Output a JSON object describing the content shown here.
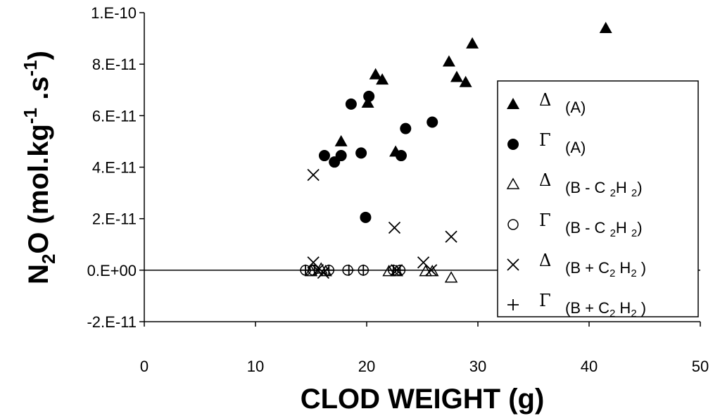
{
  "chart_data": {
    "type": "scatter",
    "title": "",
    "xlabel": "CLOD WEIGHT (g)",
    "ylabel": {
      "main": "N",
      "sub": "2",
      "rest": "O (mol.kg",
      "sup1": "-1",
      "mid": " .s",
      "sup2": "-1",
      "close": ")"
    },
    "xlim": [
      0,
      50
    ],
    "ylim": [
      -2e-11,
      1e-10
    ],
    "x_ticks": [
      0,
      10,
      20,
      30,
      40,
      50
    ],
    "x_tick_labels": [
      "0",
      "10",
      "20",
      "30",
      "40",
      "50"
    ],
    "y_ticks": [
      -2e-11,
      0,
      2e-11,
      4e-11,
      6e-11,
      8e-11,
      1e-10
    ],
    "y_tick_labels": [
      "-2.E-11",
      "0.E+00",
      "2.E-11",
      "4.E-11",
      "6.E-11",
      "8.E-11",
      "1.E-10"
    ],
    "legend_position": "right",
    "series": [
      {
        "greek": "Δ",
        "label": "(A)",
        "marker": "filled-triangle",
        "points": [
          [
            17.7,
            5e-11
          ],
          [
            20.8,
            7.6e-11
          ],
          [
            21.4,
            7.4e-11
          ],
          [
            20.1,
            6.5e-11
          ],
          [
            22.6,
            4.6e-11
          ],
          [
            27.4,
            8.1e-11
          ],
          [
            28.1,
            7.5e-11
          ],
          [
            28.9,
            7.3e-11
          ],
          [
            29.5,
            8.8e-11
          ],
          [
            41.5,
            9.4e-11
          ]
        ]
      },
      {
        "greek": "Γ",
        "label": "(A)",
        "marker": "filled-circle",
        "points": [
          [
            16.2,
            4.45e-11
          ],
          [
            17.1,
            4.2e-11
          ],
          [
            17.7,
            4.45e-11
          ],
          [
            18.6,
            6.45e-11
          ],
          [
            19.5,
            4.55e-11
          ],
          [
            20.2,
            6.75e-11
          ],
          [
            19.9,
            2.05e-11
          ],
          [
            23.1,
            4.45e-11
          ],
          [
            23.5,
            5.5e-11
          ],
          [
            25.9,
            5.75e-11
          ]
        ]
      },
      {
        "greek": "Δ",
        "label": "(B - C 2H 2)",
        "label_parts": [
          "(B - C ",
          "2",
          "H ",
          "2",
          ")"
        ],
        "marker": "open-triangle",
        "points": [
          [
            15.0,
            -5e-13
          ],
          [
            15.9,
            5e-13
          ],
          [
            16.3,
            -5e-13
          ],
          [
            22.0,
            -5e-13
          ],
          [
            22.7,
            -5e-13
          ],
          [
            25.3,
            -5e-13
          ],
          [
            25.9,
            -5e-13
          ],
          [
            27.6,
            -3e-12
          ]
        ]
      },
      {
        "greek": "Γ",
        "label": "(B - C 2H 2)",
        "label_parts": [
          "(B - C ",
          "2",
          "H ",
          "2",
          ")"
        ],
        "marker": "open-circle",
        "points": [
          [
            14.5,
            0
          ],
          [
            15.2,
            0
          ],
          [
            16.6,
            0
          ],
          [
            18.3,
            0
          ],
          [
            19.7,
            0
          ],
          [
            22.4,
            0
          ],
          [
            23.0,
            0
          ]
        ]
      },
      {
        "greek": "Δ",
        "label": "(B + C2H2 )",
        "label_parts": [
          "(B + C",
          "2",
          " H",
          "2",
          " )"
        ],
        "marker": "x",
        "points": [
          [
            15.2,
            3.7e-11
          ],
          [
            15.2,
            3e-12
          ],
          [
            15.6,
            0
          ],
          [
            16.1,
            -1e-12
          ],
          [
            22.5,
            1.65e-11
          ],
          [
            22.7,
            0
          ],
          [
            25.1,
            3e-12
          ],
          [
            25.8,
            0
          ],
          [
            27.6,
            1.3e-11
          ]
        ]
      },
      {
        "greek": "Γ",
        "label": "(B + C2H2 )",
        "label_parts": [
          "(B + C",
          "2",
          " H",
          "2",
          " )"
        ],
        "marker": "plus",
        "points": [
          [
            14.5,
            0
          ],
          [
            15.3,
            0
          ],
          [
            16.6,
            0
          ],
          [
            18.4,
            0
          ],
          [
            19.7,
            0
          ],
          [
            22.4,
            0
          ],
          [
            23.0,
            0
          ]
        ]
      }
    ]
  }
}
